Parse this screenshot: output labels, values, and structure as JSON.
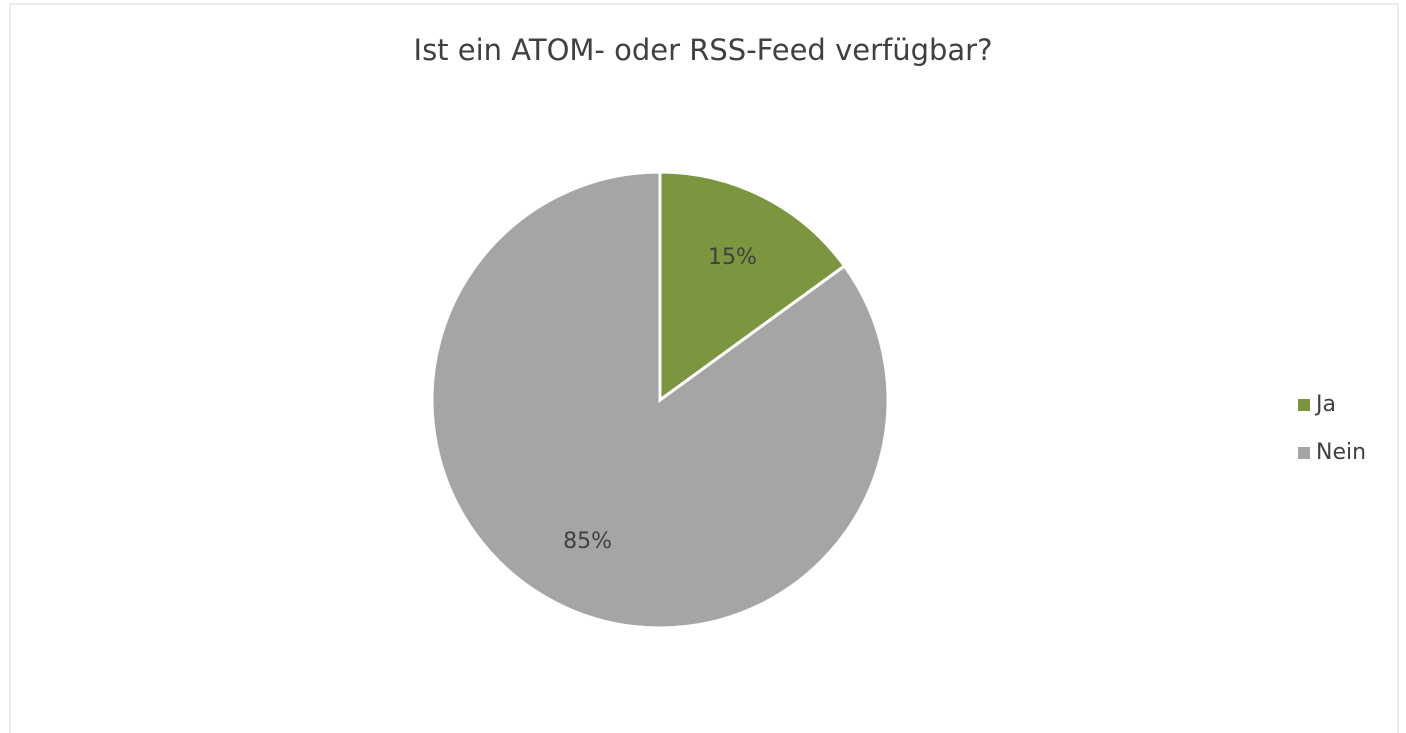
{
  "chart_data": {
    "type": "pie",
    "title": "Ist ein ATOM- oder RSS-Feed verfügbar?",
    "categories": [
      "Ja",
      "Nein"
    ],
    "values": [
      15,
      85
    ],
    "value_labels": [
      "15%",
      "85%"
    ],
    "colors": [
      "#7b963f",
      "#a5a5a5"
    ],
    "legend": "right"
  }
}
